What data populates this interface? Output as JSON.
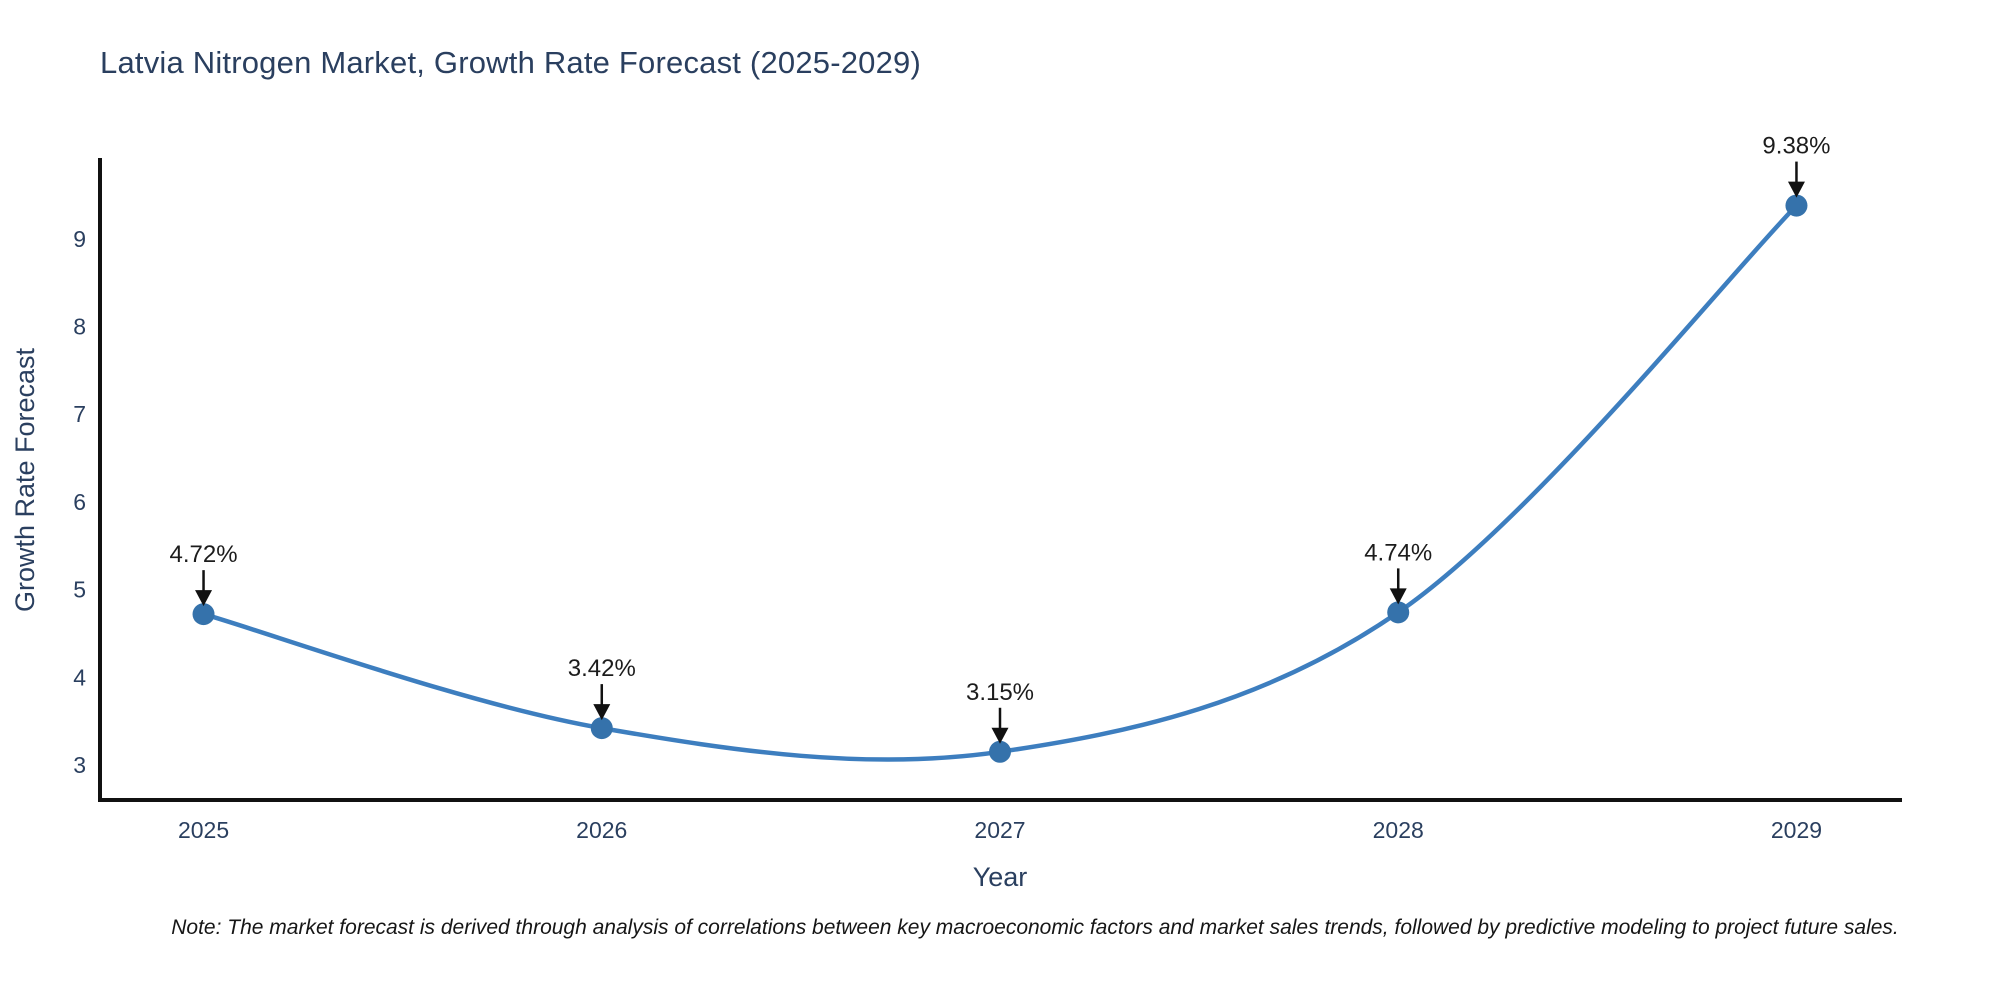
{
  "chart": {
    "title": "Latvia Nitrogen Market, Growth Rate Forecast (2025-2029)",
    "xlabel": "Year",
    "ylabel": "Growth Rate Forecast",
    "note": "Note: The market forecast is derived through analysis of correlations between key macroeconomic factors and market sales trends, followed by predictive modeling to project future sales."
  },
  "chart_data": {
    "type": "line",
    "title": "Latvia Nitrogen Market, Growth Rate Forecast (2025-2029)",
    "xlabel": "Year",
    "ylabel": "Growth Rate Forecast",
    "x": [
      2025,
      2026,
      2027,
      2028,
      2029
    ],
    "values": [
      4.72,
      3.42,
      3.15,
      4.74,
      9.38
    ],
    "point_labels": [
      "4.72%",
      "3.42%",
      "3.15%",
      "4.74%",
      "9.38%"
    ],
    "xticks": [
      "2025",
      "2026",
      "2027",
      "2028",
      "2029"
    ],
    "yticks": [
      3,
      4,
      5,
      6,
      7,
      8,
      9
    ],
    "xlim": [
      2024.74,
      2029.26
    ],
    "ylim": [
      2.6,
      9.9
    ],
    "line_shape": "spline",
    "grid": false,
    "legend": "none",
    "colors": {
      "line": "#3d7ebf",
      "marker": "#3572ab",
      "axis": "#111111",
      "tick_text": "#2a3f5f",
      "annotation_text": "#1c1c1c",
      "arrow": "#111111"
    }
  }
}
